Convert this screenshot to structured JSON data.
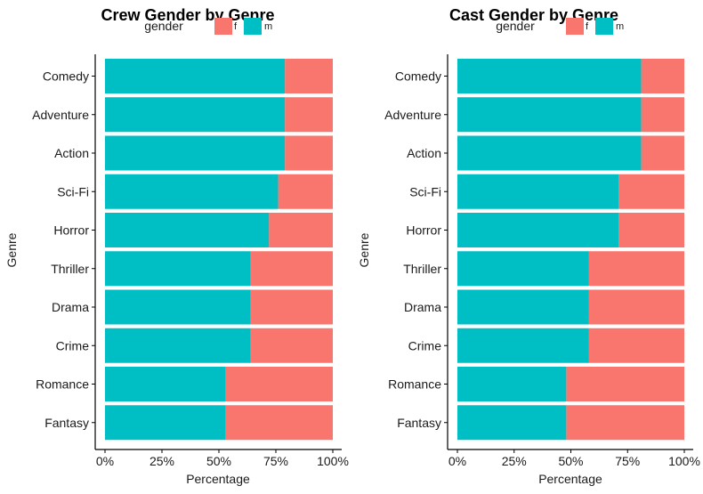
{
  "chart_data": [
    {
      "type": "bar",
      "orientation": "horizontal",
      "stacked": "percent",
      "title": "Crew Gender by Genre",
      "xlabel": "Percentage",
      "ylabel": "Genre",
      "xlim": [
        0,
        100
      ],
      "x_ticks": [
        "0%",
        "25%",
        "50%",
        "75%",
        "100%"
      ],
      "legend": {
        "title": "gender",
        "position": "top",
        "entries": [
          "f",
          "m"
        ]
      },
      "categories": [
        "Comedy",
        "Adventure",
        "Action",
        "Sci-Fi",
        "Horror",
        "Thriller",
        "Drama",
        "Crime",
        "Romance",
        "Fantasy"
      ],
      "series": [
        {
          "name": "m",
          "values": [
            79,
            79,
            79,
            76,
            72,
            64,
            64,
            64,
            53,
            53
          ]
        },
        {
          "name": "f",
          "values": [
            21,
            21,
            21,
            24,
            28,
            36,
            36,
            36,
            47,
            47
          ]
        }
      ]
    },
    {
      "type": "bar",
      "orientation": "horizontal",
      "stacked": "percent",
      "title": "Cast Gender by Genre",
      "xlabel": "Percentage",
      "ylabel": "Genre",
      "xlim": [
        0,
        100
      ],
      "x_ticks": [
        "0%",
        "25%",
        "50%",
        "75%",
        "100%"
      ],
      "legend": {
        "title": "gender",
        "position": "top",
        "entries": [
          "f",
          "m"
        ]
      },
      "categories": [
        "Comedy",
        "Adventure",
        "Action",
        "Sci-Fi",
        "Horror",
        "Thriller",
        "Drama",
        "Crime",
        "Romance",
        "Fantasy"
      ],
      "series": [
        {
          "name": "m",
          "values": [
            81,
            81,
            81,
            71,
            71,
            58,
            58,
            58,
            48,
            48
          ]
        },
        {
          "name": "f",
          "values": [
            19,
            19,
            19,
            29,
            29,
            42,
            42,
            42,
            52,
            52
          ]
        }
      ]
    }
  ],
  "colors": {
    "f": "#F8766D",
    "m": "#00BFC4",
    "axis": "#000000",
    "text": "#1a1a1a"
  }
}
